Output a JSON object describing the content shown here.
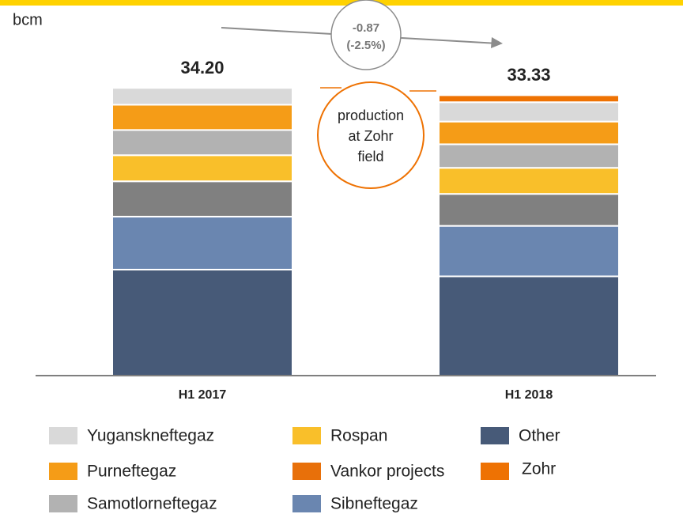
{
  "chart_data": {
    "type": "stacked_bar",
    "unit_label": "bcm",
    "categories": [
      "H1 2017",
      "H1 2018"
    ],
    "totals": [
      34.2,
      33.33
    ],
    "total_labels": [
      "34.20",
      "33.33"
    ],
    "series": [
      {
        "name": "Other",
        "color": "#475a78",
        "values": [
          12.6,
          11.8
        ]
      },
      {
        "name": "Sibneftegaz",
        "color": "#6a86b0",
        "values": [
          6.3,
          6.0
        ]
      },
      {
        "name": "Vankor projects",
        "color": "#808080",
        "legend_color": "#e8700a",
        "values": [
          4.2,
          3.8
        ]
      },
      {
        "name": "Rospan",
        "color": "#f9bf2a",
        "values": [
          3.1,
          3.1
        ]
      },
      {
        "name": "Samotlorneftegaz",
        "color": "#b2b2b2",
        "values": [
          3.0,
          2.8
        ]
      },
      {
        "name": "Purneftegaz",
        "color": "#f59c17",
        "values": [
          3.0,
          2.7
        ]
      },
      {
        "name": "Yuganskneftegaz",
        "color": "#d9d9d9",
        "values": [
          2.0,
          2.3
        ]
      },
      {
        "name": "Zohr",
        "color": "#ee7203",
        "values": [
          0,
          0.83
        ]
      }
    ],
    "ylim": [
      0,
      36
    ],
    "annotations": {
      "change": {
        "value": -0.87,
        "label": "-0.87"
      },
      "change_pct": {
        "value": -2.5,
        "label": "(-2.5%)"
      },
      "note": [
        "production",
        "at Zohr",
        "field"
      ]
    }
  }
}
